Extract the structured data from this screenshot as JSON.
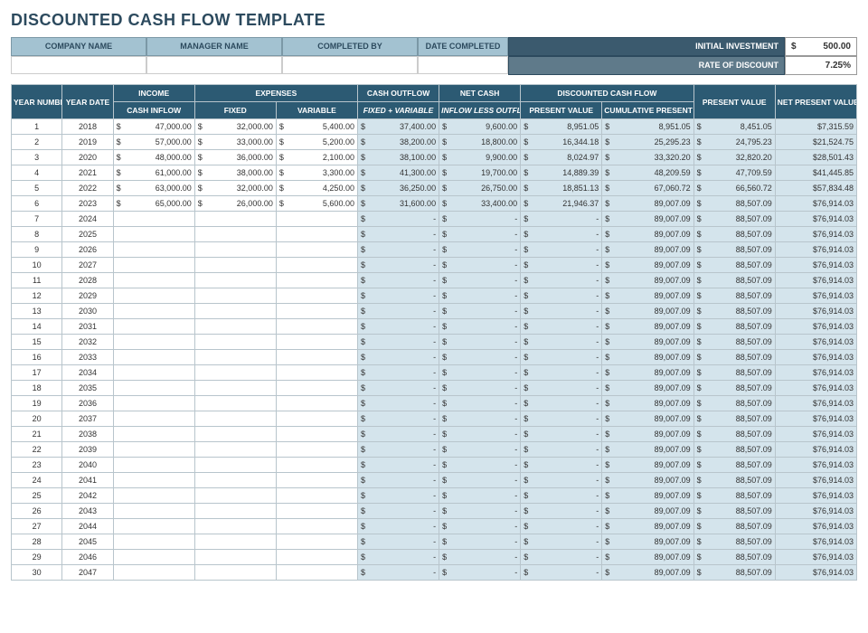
{
  "title": "DISCOUNTED CASH FLOW TEMPLATE",
  "colors": {
    "header_dark": "#2c5a73",
    "header_light": "#a3c2d1",
    "shade": "#d4e4ec",
    "border": "#b8c5cc",
    "title": "#2c4a5e"
  },
  "info": {
    "company_name_label": "COMPANY NAME",
    "manager_name_label": "MANAGER NAME",
    "completed_by_label": "COMPLETED BY",
    "date_completed_label": "DATE COMPLETED",
    "initial_investment_label": "INITIAL INVESTMENT",
    "initial_investment_value": "500.00",
    "rate_of_discount_label": "RATE OF DISCOUNT",
    "rate_of_discount_value": "7.25%"
  },
  "headers": {
    "year_number": "YEAR NUMBER",
    "year_date": "YEAR DATE",
    "income": "INCOME",
    "cash_inflow": "CASH INFLOW",
    "expenses": "EXPENSES",
    "fixed": "FIXED",
    "variable": "VARIABLE",
    "cash_outflow": "CASH OUTFLOW",
    "fixed_variable": "FIXED + VARIABLE",
    "net_cash": "NET CASH",
    "inflow_less_outflow": "INFLOW LESS OUTFLOW",
    "dcf": "DISCOUNTED CASH FLOW",
    "present_value": "PRESENT VALUE",
    "cum_present_value": "CUMULATIVE PRESENT VALUE",
    "present_value2": "PRESENT VALUE",
    "npv": "NET PRESENT VALUE"
  },
  "currency_symbol": "$",
  "dash": "-",
  "rows": [
    {
      "n": 1,
      "year": 2018,
      "inflow": "47,000.00",
      "fixed": "32,000.00",
      "variable": "5,400.00",
      "outflow": "37,400.00",
      "net": "9,600.00",
      "pv": "8,951.05",
      "cumpv": "8,951.05",
      "pv2": "8,451.05",
      "npv": "$7,315.59"
    },
    {
      "n": 2,
      "year": 2019,
      "inflow": "57,000.00",
      "fixed": "33,000.00",
      "variable": "5,200.00",
      "outflow": "38,200.00",
      "net": "18,800.00",
      "pv": "16,344.18",
      "cumpv": "25,295.23",
      "pv2": "24,795.23",
      "npv": "$21,524.75"
    },
    {
      "n": 3,
      "year": 2020,
      "inflow": "48,000.00",
      "fixed": "36,000.00",
      "variable": "2,100.00",
      "outflow": "38,100.00",
      "net": "9,900.00",
      "pv": "8,024.97",
      "cumpv": "33,320.20",
      "pv2": "32,820.20",
      "npv": "$28,501.43"
    },
    {
      "n": 4,
      "year": 2021,
      "inflow": "61,000.00",
      "fixed": "38,000.00",
      "variable": "3,300.00",
      "outflow": "41,300.00",
      "net": "19,700.00",
      "pv": "14,889.39",
      "cumpv": "48,209.59",
      "pv2": "47,709.59",
      "npv": "$41,445.85"
    },
    {
      "n": 5,
      "year": 2022,
      "inflow": "63,000.00",
      "fixed": "32,000.00",
      "variable": "4,250.00",
      "outflow": "36,250.00",
      "net": "26,750.00",
      "pv": "18,851.13",
      "cumpv": "67,060.72",
      "pv2": "66,560.72",
      "npv": "$57,834.48"
    },
    {
      "n": 6,
      "year": 2023,
      "inflow": "65,000.00",
      "fixed": "26,000.00",
      "variable": "5,600.00",
      "outflow": "31,600.00",
      "net": "33,400.00",
      "pv": "21,946.37",
      "cumpv": "89,007.09",
      "pv2": "88,507.09",
      "npv": "$76,914.03"
    },
    {
      "n": 7,
      "year": 2024,
      "inflow": "",
      "fixed": "",
      "variable": "",
      "outflow": "-",
      "net": "-",
      "pv": "-",
      "cumpv": "89,007.09",
      "pv2": "88,507.09",
      "npv": "$76,914.03"
    },
    {
      "n": 8,
      "year": 2025,
      "inflow": "",
      "fixed": "",
      "variable": "",
      "outflow": "-",
      "net": "-",
      "pv": "-",
      "cumpv": "89,007.09",
      "pv2": "88,507.09",
      "npv": "$76,914.03"
    },
    {
      "n": 9,
      "year": 2026,
      "inflow": "",
      "fixed": "",
      "variable": "",
      "outflow": "-",
      "net": "-",
      "pv": "-",
      "cumpv": "89,007.09",
      "pv2": "88,507.09",
      "npv": "$76,914.03"
    },
    {
      "n": 10,
      "year": 2027,
      "inflow": "",
      "fixed": "",
      "variable": "",
      "outflow": "-",
      "net": "-",
      "pv": "-",
      "cumpv": "89,007.09",
      "pv2": "88,507.09",
      "npv": "$76,914.03"
    },
    {
      "n": 11,
      "year": 2028,
      "inflow": "",
      "fixed": "",
      "variable": "",
      "outflow": "-",
      "net": "-",
      "pv": "-",
      "cumpv": "89,007.09",
      "pv2": "88,507.09",
      "npv": "$76,914.03"
    },
    {
      "n": 12,
      "year": 2029,
      "inflow": "",
      "fixed": "",
      "variable": "",
      "outflow": "-",
      "net": "-",
      "pv": "-",
      "cumpv": "89,007.09",
      "pv2": "88,507.09",
      "npv": "$76,914.03"
    },
    {
      "n": 13,
      "year": 2030,
      "inflow": "",
      "fixed": "",
      "variable": "",
      "outflow": "-",
      "net": "-",
      "pv": "-",
      "cumpv": "89,007.09",
      "pv2": "88,507.09",
      "npv": "$76,914.03"
    },
    {
      "n": 14,
      "year": 2031,
      "inflow": "",
      "fixed": "",
      "variable": "",
      "outflow": "-",
      "net": "-",
      "pv": "-",
      "cumpv": "89,007.09",
      "pv2": "88,507.09",
      "npv": "$76,914.03"
    },
    {
      "n": 15,
      "year": 2032,
      "inflow": "",
      "fixed": "",
      "variable": "",
      "outflow": "-",
      "net": "-",
      "pv": "-",
      "cumpv": "89,007.09",
      "pv2": "88,507.09",
      "npv": "$76,914.03"
    },
    {
      "n": 16,
      "year": 2033,
      "inflow": "",
      "fixed": "",
      "variable": "",
      "outflow": "-",
      "net": "-",
      "pv": "-",
      "cumpv": "89,007.09",
      "pv2": "88,507.09",
      "npv": "$76,914.03"
    },
    {
      "n": 17,
      "year": 2034,
      "inflow": "",
      "fixed": "",
      "variable": "",
      "outflow": "-",
      "net": "-",
      "pv": "-",
      "cumpv": "89,007.09",
      "pv2": "88,507.09",
      "npv": "$76,914.03"
    },
    {
      "n": 18,
      "year": 2035,
      "inflow": "",
      "fixed": "",
      "variable": "",
      "outflow": "-",
      "net": "-",
      "pv": "-",
      "cumpv": "89,007.09",
      "pv2": "88,507.09",
      "npv": "$76,914.03"
    },
    {
      "n": 19,
      "year": 2036,
      "inflow": "",
      "fixed": "",
      "variable": "",
      "outflow": "-",
      "net": "-",
      "pv": "-",
      "cumpv": "89,007.09",
      "pv2": "88,507.09",
      "npv": "$76,914.03"
    },
    {
      "n": 20,
      "year": 2037,
      "inflow": "",
      "fixed": "",
      "variable": "",
      "outflow": "-",
      "net": "-",
      "pv": "-",
      "cumpv": "89,007.09",
      "pv2": "88,507.09",
      "npv": "$76,914.03"
    },
    {
      "n": 21,
      "year": 2038,
      "inflow": "",
      "fixed": "",
      "variable": "",
      "outflow": "-",
      "net": "-",
      "pv": "-",
      "cumpv": "89,007.09",
      "pv2": "88,507.09",
      "npv": "$76,914.03"
    },
    {
      "n": 22,
      "year": 2039,
      "inflow": "",
      "fixed": "",
      "variable": "",
      "outflow": "-",
      "net": "-",
      "pv": "-",
      "cumpv": "89,007.09",
      "pv2": "88,507.09",
      "npv": "$76,914.03"
    },
    {
      "n": 23,
      "year": 2040,
      "inflow": "",
      "fixed": "",
      "variable": "",
      "outflow": "-",
      "net": "-",
      "pv": "-",
      "cumpv": "89,007.09",
      "pv2": "88,507.09",
      "npv": "$76,914.03"
    },
    {
      "n": 24,
      "year": 2041,
      "inflow": "",
      "fixed": "",
      "variable": "",
      "outflow": "-",
      "net": "-",
      "pv": "-",
      "cumpv": "89,007.09",
      "pv2": "88,507.09",
      "npv": "$76,914.03"
    },
    {
      "n": 25,
      "year": 2042,
      "inflow": "",
      "fixed": "",
      "variable": "",
      "outflow": "-",
      "net": "-",
      "pv": "-",
      "cumpv": "89,007.09",
      "pv2": "88,507.09",
      "npv": "$76,914.03"
    },
    {
      "n": 26,
      "year": 2043,
      "inflow": "",
      "fixed": "",
      "variable": "",
      "outflow": "-",
      "net": "-",
      "pv": "-",
      "cumpv": "89,007.09",
      "pv2": "88,507.09",
      "npv": "$76,914.03"
    },
    {
      "n": 27,
      "year": 2044,
      "inflow": "",
      "fixed": "",
      "variable": "",
      "outflow": "-",
      "net": "-",
      "pv": "-",
      "cumpv": "89,007.09",
      "pv2": "88,507.09",
      "npv": "$76,914.03"
    },
    {
      "n": 28,
      "year": 2045,
      "inflow": "",
      "fixed": "",
      "variable": "",
      "outflow": "-",
      "net": "-",
      "pv": "-",
      "cumpv": "89,007.09",
      "pv2": "88,507.09",
      "npv": "$76,914.03"
    },
    {
      "n": 29,
      "year": 2046,
      "inflow": "",
      "fixed": "",
      "variable": "",
      "outflow": "-",
      "net": "-",
      "pv": "-",
      "cumpv": "89,007.09",
      "pv2": "88,507.09",
      "npv": "$76,914.03"
    },
    {
      "n": 30,
      "year": 2047,
      "inflow": "",
      "fixed": "",
      "variable": "",
      "outflow": "-",
      "net": "-",
      "pv": "-",
      "cumpv": "89,007.09",
      "pv2": "88,507.09",
      "npv": "$76,914.03"
    }
  ]
}
